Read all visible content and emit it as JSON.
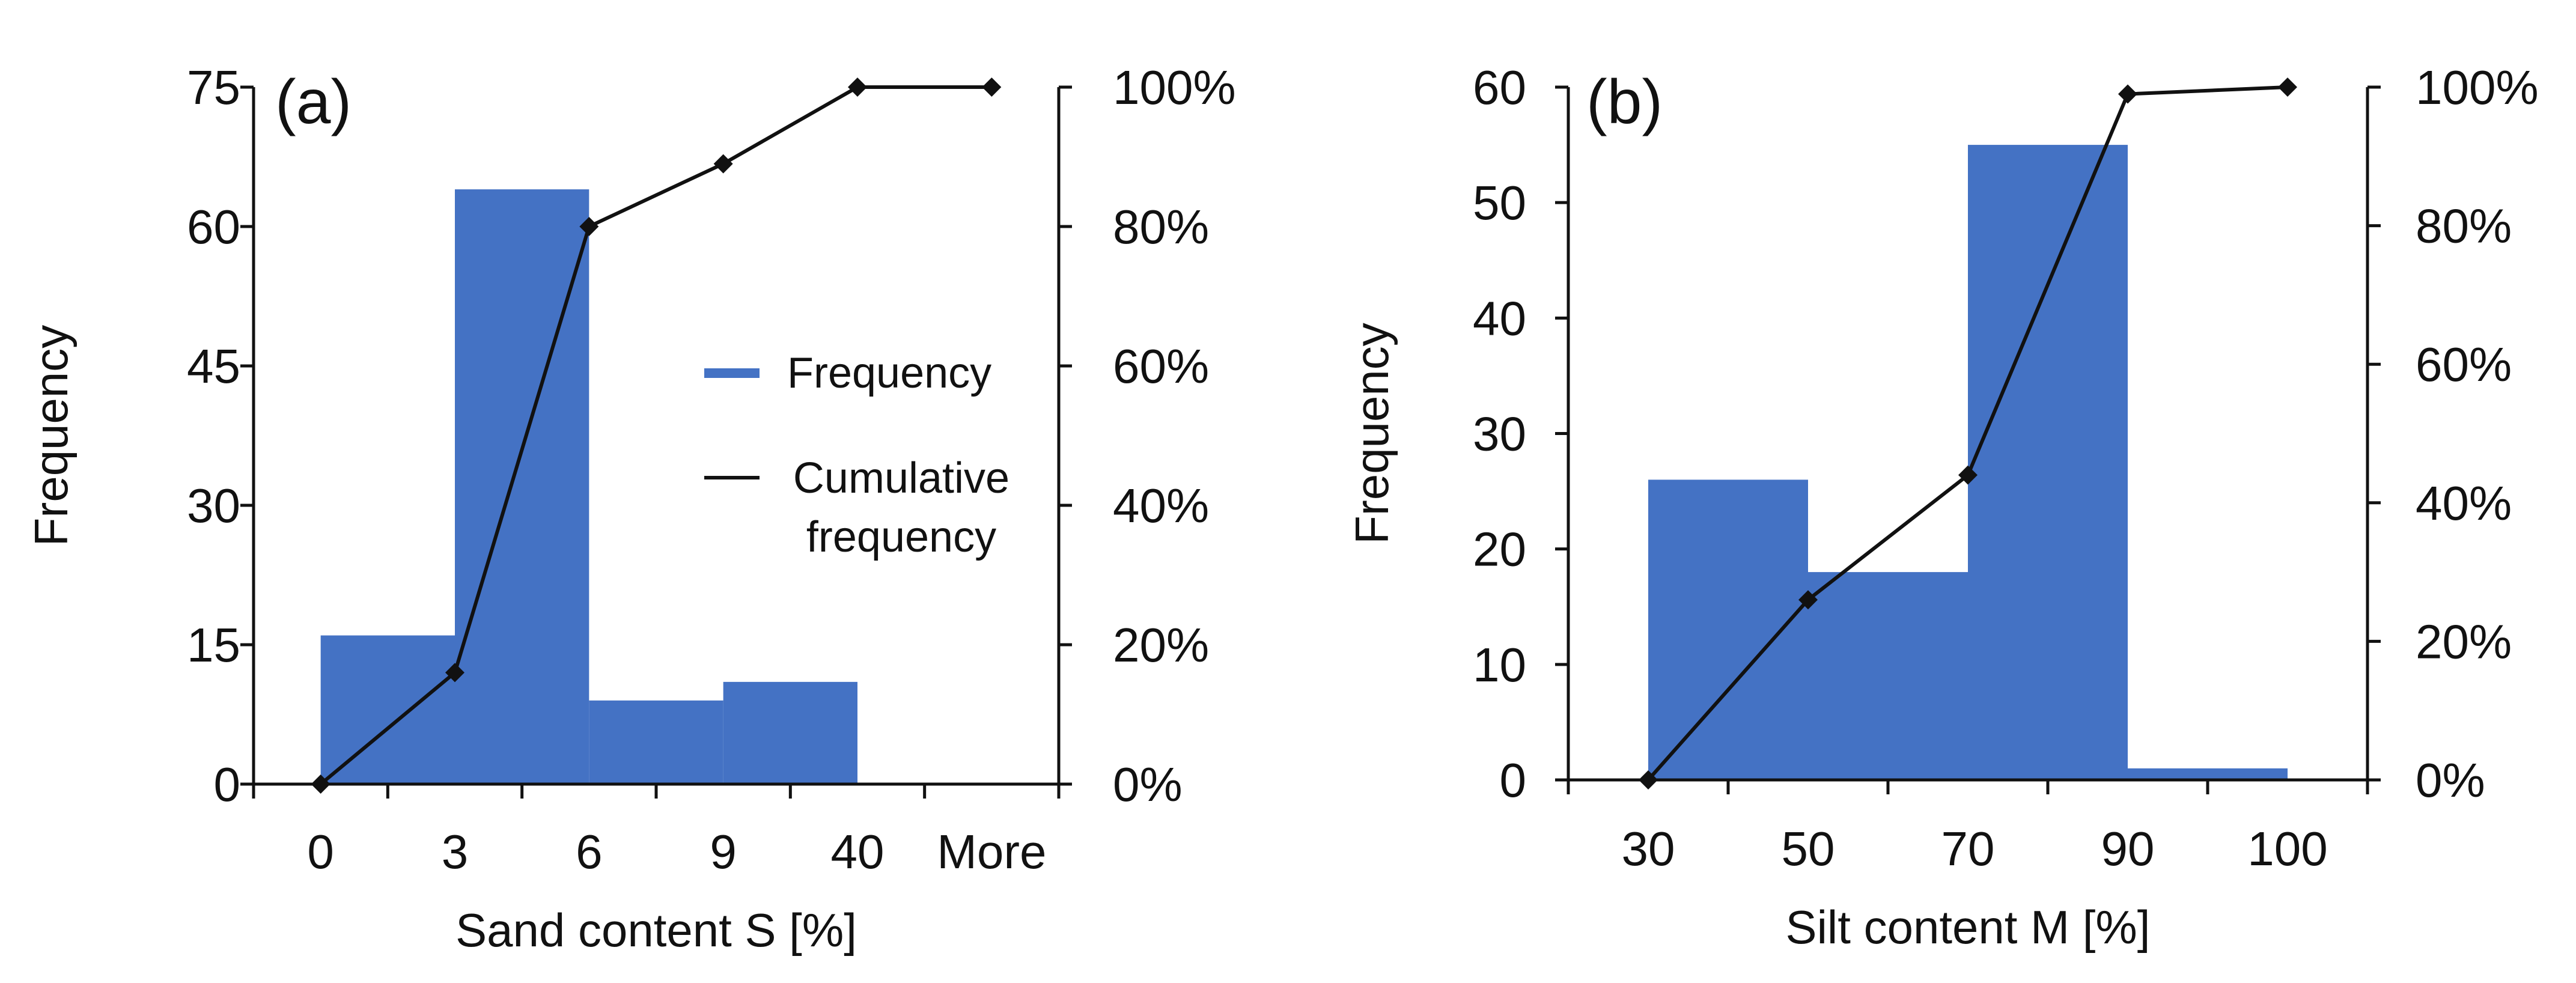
{
  "colors": {
    "bar": "#4472C4",
    "line": "#111111",
    "axis": "#111111",
    "background": "#ffffff"
  },
  "chart_data": [
    {
      "panel": "(a)",
      "type": "bar",
      "xlabel": "Sand content S [%]",
      "ylabel": "Frequency",
      "categories": [
        "0",
        "3",
        "6",
        "9",
        "40",
        "More"
      ],
      "series": [
        {
          "name": "Frequency",
          "values": [
            0,
            16,
            64,
            9,
            11,
            0
          ]
        },
        {
          "name": "Cumulative frequency",
          "type": "line",
          "marker": "diamond",
          "axis": "right",
          "values": [
            0.0,
            0.16,
            0.8,
            0.89,
            1.0,
            1.0
          ]
        }
      ],
      "ylim": [
        0,
        75
      ],
      "yticks": [
        0,
        15,
        30,
        45,
        60,
        75
      ],
      "y2lim": [
        0,
        1
      ],
      "y2ticks": [
        "0%",
        "20%",
        "40%",
        "60%",
        "80%",
        "100%"
      ],
      "legend": {
        "placement": "right-center",
        "entries": [
          {
            "label": "Frequency",
            "kind": "bar"
          },
          {
            "label_lines": [
              "Cumulative",
              "frequency"
            ],
            "kind": "line"
          }
        ]
      }
    },
    {
      "panel": "(b)",
      "type": "bar",
      "xlabel": "Silt content M [%]",
      "ylabel": "Frequency",
      "categories": [
        "30",
        "50",
        "70",
        "90",
        "100"
      ],
      "series": [
        {
          "name": "Frequency",
          "values": [
            0,
            26,
            18,
            55,
            1
          ]
        },
        {
          "name": "Cumulative frequency",
          "type": "line",
          "marker": "diamond",
          "axis": "right",
          "values": [
            0.0,
            0.26,
            0.44,
            0.99,
            1.0
          ]
        }
      ],
      "ylim": [
        0,
        60
      ],
      "yticks": [
        0,
        10,
        20,
        30,
        40,
        50,
        60
      ],
      "y2lim": [
        0,
        1
      ],
      "y2ticks": [
        "0%",
        "20%",
        "40%",
        "60%",
        "80%",
        "100%"
      ]
    }
  ]
}
